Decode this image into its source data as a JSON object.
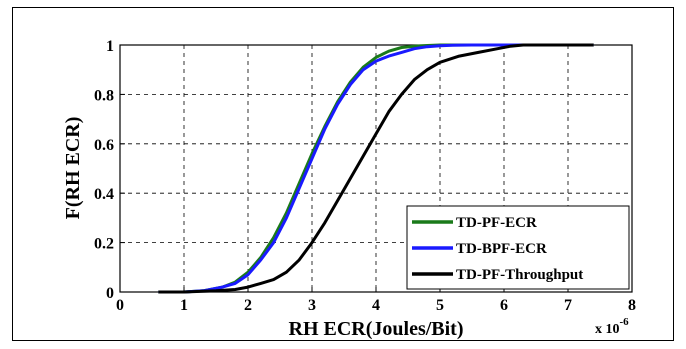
{
  "chart_data": {
    "type": "line",
    "xlabel": "RH ECR(Joules/Bit)",
    "ylabel": "F(RH ECR)",
    "x_multiplier": "x 10",
    "x_multiplier_exp": "-6",
    "xlim": [
      0,
      8
    ],
    "ylim": [
      0,
      1
    ],
    "xticks": [
      "0",
      "1",
      "2",
      "3",
      "4",
      "5",
      "6",
      "7",
      "8"
    ],
    "yticks": [
      "0",
      "0.2",
      "0.4",
      "0.6",
      "0.8",
      "1"
    ],
    "grid": true,
    "legend_position": "bottom-right",
    "series": [
      {
        "name": "TD-PF-ECR",
        "color": "#1a7a1a",
        "x": [
          0.6,
          1.0,
          1.3,
          1.6,
          1.8,
          2.0,
          2.2,
          2.4,
          2.6,
          2.8,
          3.0,
          3.2,
          3.4,
          3.6,
          3.8,
          4.0,
          4.2,
          4.4,
          4.6,
          4.8,
          5.0,
          5.5,
          6.0,
          7.0,
          7.4
        ],
        "y": [
          0,
          0,
          0.005,
          0.02,
          0.04,
          0.08,
          0.14,
          0.22,
          0.32,
          0.44,
          0.56,
          0.67,
          0.77,
          0.85,
          0.91,
          0.95,
          0.975,
          0.99,
          0.995,
          0.998,
          1.0,
          1.0,
          1.0,
          1.0,
          1.0
        ]
      },
      {
        "name": "TD-BPF-ECR",
        "color": "#1a1aff",
        "x": [
          0.6,
          1.0,
          1.3,
          1.6,
          1.8,
          2.0,
          2.2,
          2.4,
          2.6,
          2.8,
          3.0,
          3.2,
          3.4,
          3.6,
          3.8,
          4.0,
          4.2,
          4.4,
          4.6,
          4.8,
          5.0,
          5.2,
          5.5,
          6.0,
          7.0,
          7.4
        ],
        "y": [
          0,
          0,
          0.005,
          0.02,
          0.035,
          0.07,
          0.13,
          0.2,
          0.3,
          0.42,
          0.54,
          0.66,
          0.76,
          0.84,
          0.9,
          0.935,
          0.955,
          0.97,
          0.985,
          0.993,
          0.997,
          0.999,
          1.0,
          1.0,
          1.0,
          1.0
        ]
      },
      {
        "name": "TD-PF-Throughput",
        "color": "#000000",
        "x": [
          0.6,
          1.0,
          1.5,
          1.8,
          2.0,
          2.2,
          2.4,
          2.6,
          2.8,
          3.0,
          3.2,
          3.4,
          3.6,
          3.8,
          4.0,
          4.2,
          4.4,
          4.6,
          4.8,
          5.0,
          5.3,
          5.6,
          5.9,
          6.1,
          6.3,
          6.6,
          7.0,
          7.4
        ],
        "y": [
          0,
          0,
          0.005,
          0.01,
          0.02,
          0.035,
          0.05,
          0.08,
          0.13,
          0.2,
          0.28,
          0.37,
          0.46,
          0.55,
          0.64,
          0.73,
          0.8,
          0.86,
          0.9,
          0.93,
          0.955,
          0.97,
          0.985,
          0.995,
          1.0,
          1.0,
          1.0,
          1.0
        ]
      }
    ]
  }
}
